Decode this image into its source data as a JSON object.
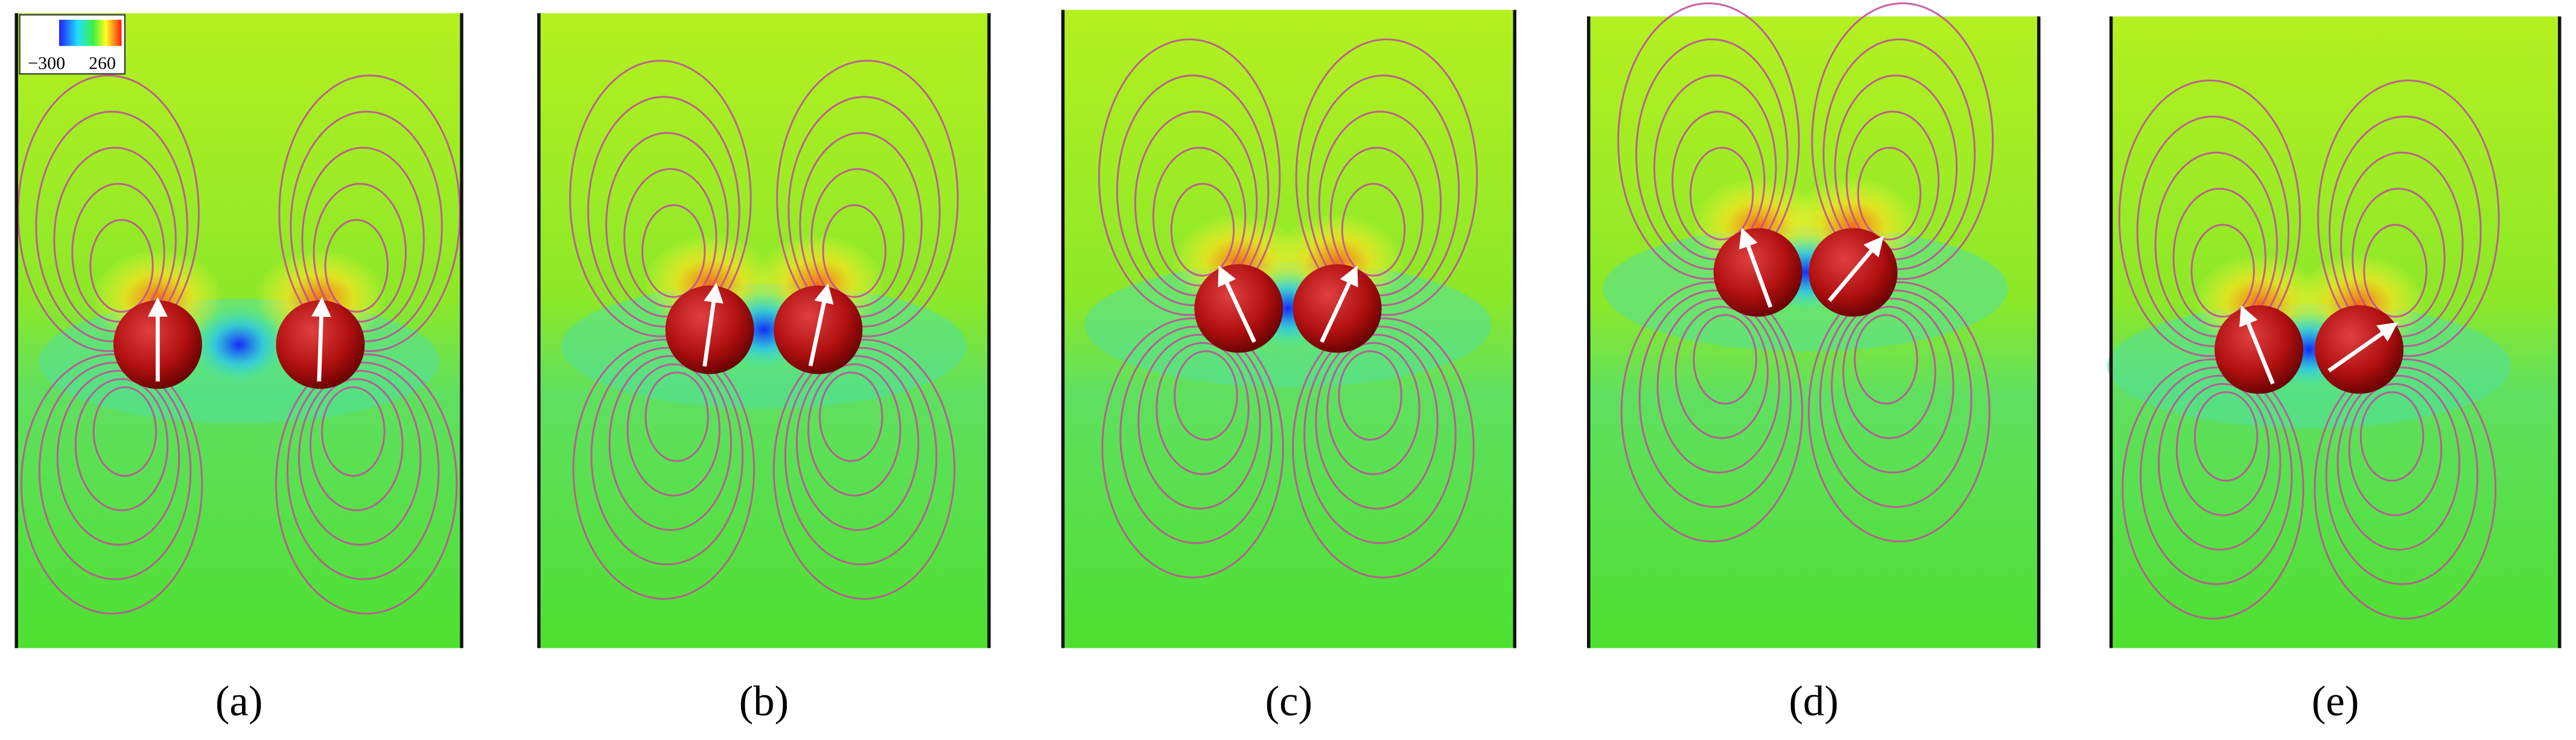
{
  "colorbar": {
    "labels": [
      "−300",
      "260"
    ]
  },
  "panels": [
    {
      "label": "(a)"
    },
    {
      "label": "(b)"
    },
    {
      "label": "(c)"
    },
    {
      "label": "(d)"
    },
    {
      "label": "(e)"
    }
  ]
}
